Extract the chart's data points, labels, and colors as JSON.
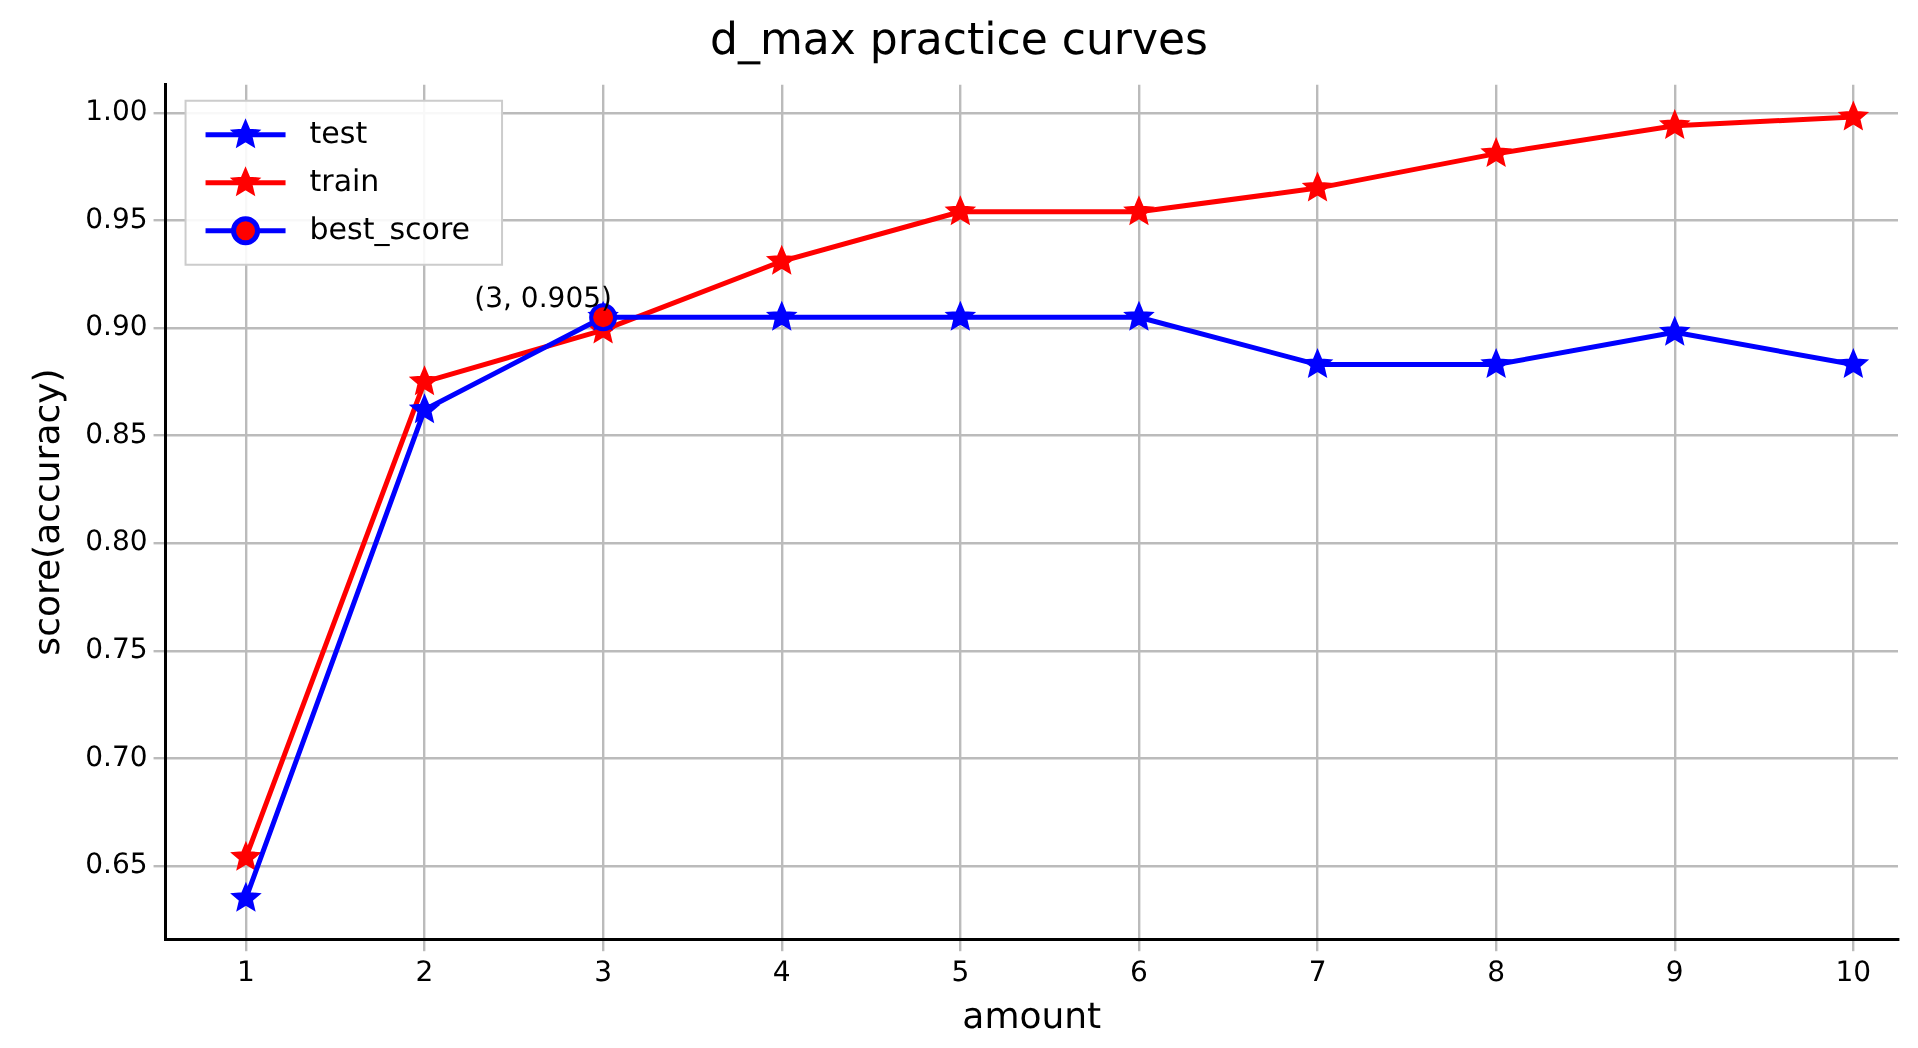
{
  "chart_data": {
    "type": "line",
    "title": "d_max practice curves",
    "xlabel": "amount",
    "ylabel": "score(accuracy)",
    "x": [
      1,
      2,
      3,
      4,
      5,
      6,
      7,
      8,
      9,
      10
    ],
    "series": [
      {
        "name": "test",
        "color": "#0000ff",
        "values": [
          0.635,
          0.862,
          0.905,
          0.905,
          0.905,
          0.905,
          0.883,
          0.883,
          0.898,
          0.883
        ],
        "marker": "star"
      },
      {
        "name": "train",
        "color": "#ff0000",
        "values": [
          0.654,
          0.875,
          0.899,
          0.931,
          0.954,
          0.954,
          0.965,
          0.981,
          0.994,
          0.998
        ],
        "marker": "star"
      },
      {
        "name": "best_score",
        "type": "scatter",
        "color": "#0000ff",
        "colors": [
          "#ff0000"
        ],
        "x": [
          3
        ],
        "values": [
          0.905
        ],
        "marker": "circle"
      }
    ],
    "annotations": [
      {
        "text": "(3, 0.905)",
        "x": 3,
        "y": 0.905
      }
    ],
    "xlim": [
      0.55,
      10.25
    ],
    "xticks": [
      1,
      2,
      3,
      4,
      5,
      6,
      7,
      8,
      9,
      10
    ],
    "ylim": [
      0.616,
      1.013
    ],
    "yticks": [
      0.65,
      {
        "value": 0.7,
        "label": "0.70"
      },
      0.75,
      {
        "value": 0.8,
        "label": "0.80"
      },
      0.85,
      {
        "value": 0.9,
        "label": "0.90"
      },
      0.95,
      {
        "value": 1,
        "label": "1.00"
      }
    ],
    "grid": true,
    "legend": "top left"
  }
}
